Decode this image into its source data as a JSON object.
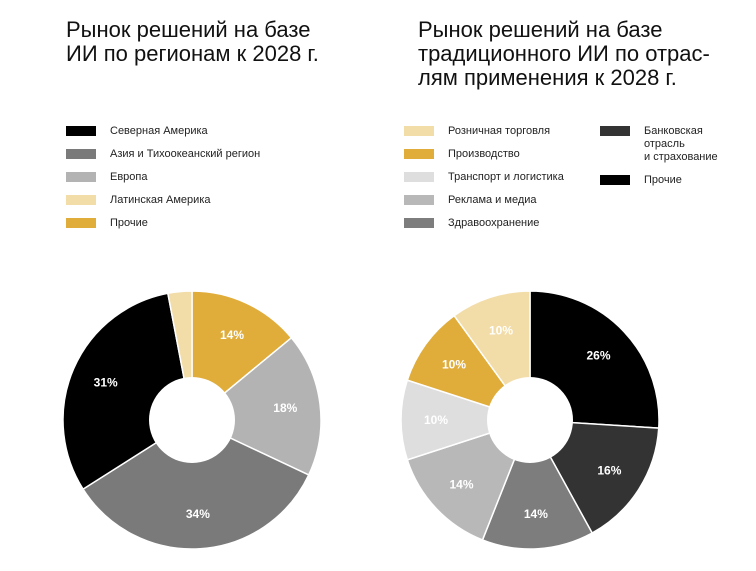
{
  "chart_data": [
    {
      "type": "pie",
      "title": "Рынок решений на базе\nИИ по регионам к 2028 г.",
      "legend_position": "top",
      "slices": [
        {
          "name": "Северная Америка",
          "value": 31,
          "label": "31%",
          "color": "#000000",
          "label_color": "#ffffff"
        },
        {
          "name": "Азия и Тихоокеанский регион",
          "value": 34,
          "label": "34%",
          "color": "#7a7a7a",
          "label_color": "#ffffff"
        },
        {
          "name": "Европа",
          "value": 18,
          "label": "18%",
          "color": "#b3b3b3",
          "label_color": "#ffffff"
        },
        {
          "name": "Латинская Америка",
          "value": 3,
          "label": "",
          "color": "#f2dca8",
          "label_color": "#ffffff"
        },
        {
          "name": "Прочие",
          "value": 14,
          "label": "14%",
          "color": "#e0ac3a",
          "label_color": "#ffffff"
        }
      ],
      "draw_order": [
        4,
        2,
        1,
        0,
        3
      ]
    },
    {
      "type": "pie",
      "title": "Рынок решений на базе\nтрадиционного ИИ по отрас-\nлям применения к 2028 г.",
      "legend_position": "top",
      "slices": [
        {
          "name": "Розничная торговля",
          "value": 10,
          "label": "10%",
          "color": "#f2dca8",
          "label_color": "#ffffff"
        },
        {
          "name": "Производство",
          "value": 10,
          "label": "10%",
          "color": "#e0ac3a",
          "label_color": "#ffffff"
        },
        {
          "name": "Транспорт и логистика",
          "value": 10,
          "label": "10%",
          "color": "#dedede",
          "label_color": "#ffffff"
        },
        {
          "name": "Реклама и медиа",
          "value": 14,
          "label": "14%",
          "color": "#b8b8b8",
          "label_color": "#ffffff"
        },
        {
          "name": "Здравоохранение",
          "value": 14,
          "label": "14%",
          "color": "#7d7d7d",
          "label_color": "#ffffff"
        },
        {
          "name": "Банковская\nотрасль\nи страхование",
          "value": 16,
          "label": "16%",
          "color": "#333333",
          "label_color": "#ffffff"
        },
        {
          "name": "Прочие",
          "value": 26,
          "label": "26%",
          "color": "#000000",
          "label_color": "#ffffff"
        }
      ],
      "draw_order": [
        6,
        5,
        4,
        3,
        2,
        1,
        0
      ]
    }
  ]
}
